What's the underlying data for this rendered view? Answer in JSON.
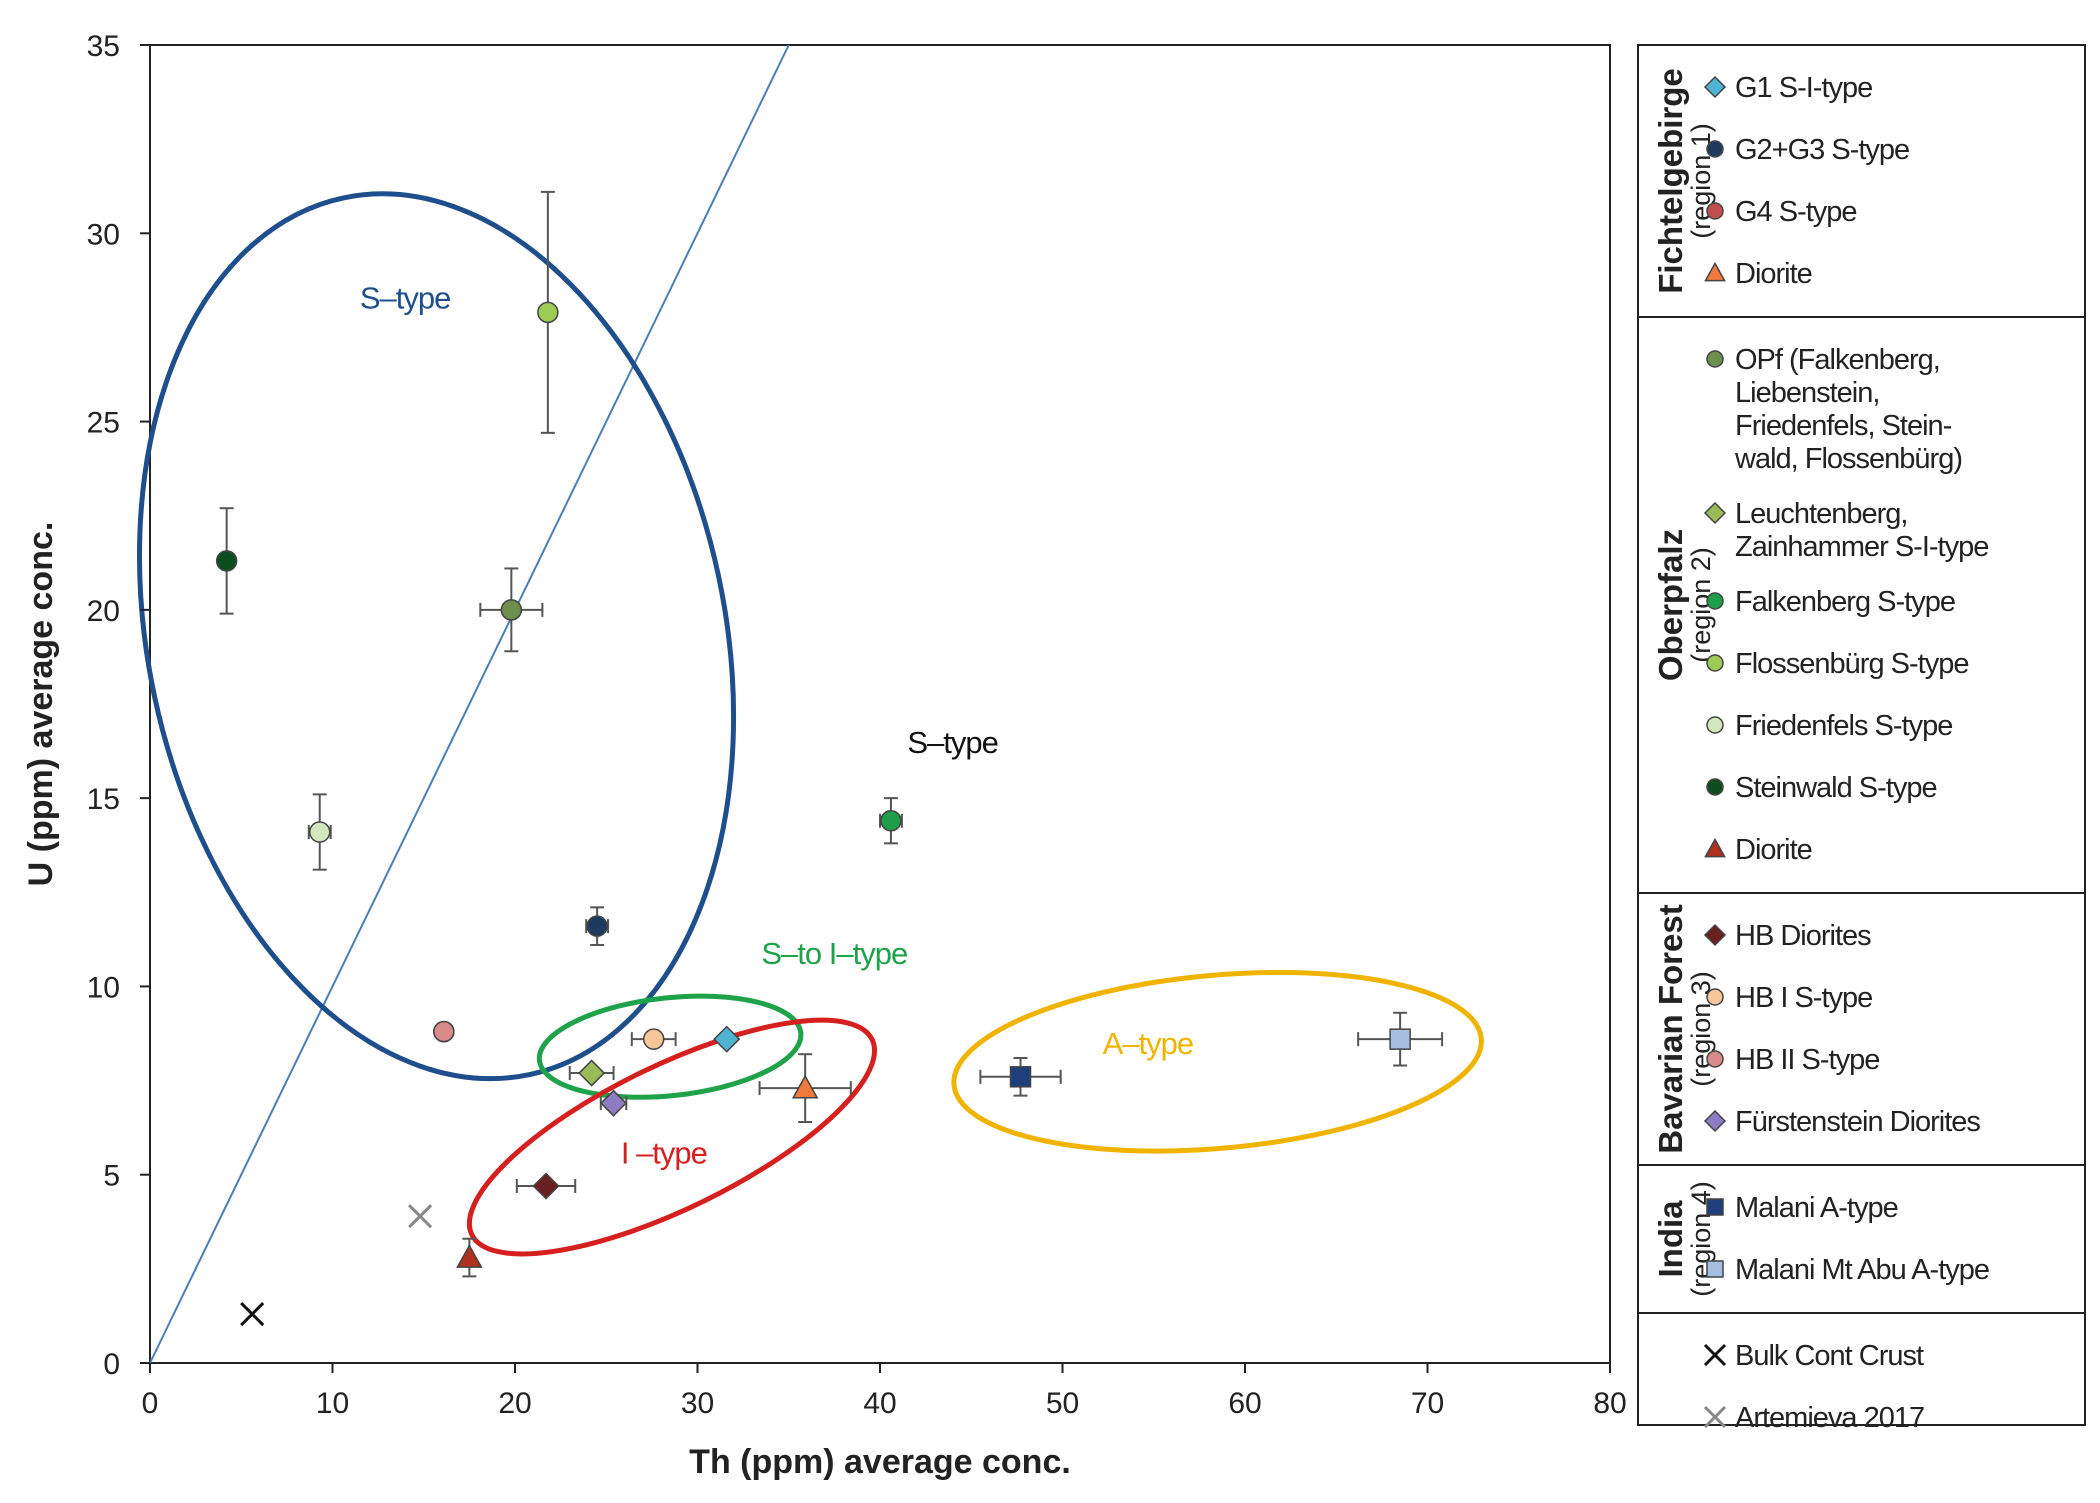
{
  "chart_data": {
    "type": "scatter",
    "xlabel": "Th (ppm) average conc.",
    "ylabel": "U (ppm) average conc.",
    "xlim": [
      0,
      80
    ],
    "ylim": [
      0,
      35
    ],
    "xticks": [
      0,
      10,
      20,
      30,
      40,
      50,
      60,
      70,
      80
    ],
    "yticks": [
      0,
      5,
      10,
      15,
      20,
      25,
      30,
      35
    ],
    "reference_line": {
      "x": [
        0,
        35
      ],
      "y": [
        0,
        35
      ],
      "color": "#4a7fb5"
    },
    "series": [
      {
        "name": "G1 S-I-type",
        "marker": "diamond",
        "color": "#4fb3d1",
        "points": [
          {
            "x": 31.6,
            "y": 8.6,
            "xerr": 0,
            "yerr": 0
          }
        ]
      },
      {
        "name": "G2+G3 S-type",
        "marker": "circle",
        "color": "#1f3a5f",
        "points": [
          {
            "x": 24.5,
            "y": 11.6,
            "xerr": 0.6,
            "yerr": 0.5
          }
        ]
      },
      {
        "name": "G4 S-type",
        "marker": "circle",
        "color": "#c0504d",
        "points": [
          {
            "x": 16.1,
            "y": 8.8,
            "xerr": 0,
            "yerr": 0
          }
        ]
      },
      {
        "name": "Diorite",
        "marker": "triangle",
        "color": "#f07a3a",
        "points": [
          {
            "x": 35.9,
            "y": 7.3,
            "xerr": 2.5,
            "yerr": 0.9
          }
        ]
      },
      {
        "name": "OPf (Falkenberg, Liebenstein, Friedenfels, Stein-wald, Flossenbürg)",
        "marker": "circle",
        "color": "#6f8f4f",
        "points": [
          {
            "x": 19.8,
            "y": 20.0,
            "xerr": 1.7,
            "yerr": 1.1
          }
        ]
      },
      {
        "name": "Leuchtenberg, Zainhammer S-I-type",
        "marker": "diamond",
        "color": "#9bbb59",
        "points": [
          {
            "x": 24.2,
            "y": 7.7,
            "xerr": 1.2,
            "yerr": 0
          }
        ]
      },
      {
        "name": "Falkenberg S-type",
        "marker": "circle",
        "color": "#1e9e4a",
        "points": [
          {
            "x": 40.6,
            "y": 14.4,
            "xerr": 0.6,
            "yerr": 0.6
          }
        ]
      },
      {
        "name": "Flossenbürg S-type",
        "marker": "circle",
        "color": "#9ccc55",
        "points": [
          {
            "x": 21.8,
            "y": 27.9,
            "xerr": 0,
            "yerr": 3.2
          }
        ]
      },
      {
        "name": "Friedenfels S-type",
        "marker": "circle",
        "color": "#d4e6bb",
        "points": [
          {
            "x": 9.3,
            "y": 14.1,
            "xerr": 0.6,
            "yerr": 1.0
          }
        ]
      },
      {
        "name": "Steinwald S-type",
        "marker": "circle",
        "color": "#0e4d1f",
        "points": [
          {
            "x": 4.2,
            "y": 21.3,
            "xerr": 0,
            "yerr": 1.4
          }
        ]
      },
      {
        "name": "Diorite",
        "marker": "triangle",
        "color": "#b03020",
        "points": [
          {
            "x": 17.5,
            "y": 2.8,
            "xerr": 0,
            "yerr": 0.5
          }
        ]
      },
      {
        "name": "HB Diorites",
        "marker": "diamond",
        "color": "#6b2020",
        "points": [
          {
            "x": 21.7,
            "y": 4.7,
            "xerr": 1.6,
            "yerr": 0
          }
        ]
      },
      {
        "name": "HB I S-type",
        "marker": "circle",
        "color": "#f7c79a",
        "points": [
          {
            "x": 27.6,
            "y": 8.6,
            "xerr": 1.2,
            "yerr": 0
          }
        ]
      },
      {
        "name": "HB II S-type",
        "marker": "circle",
        "color": "#d98b8b",
        "points": [
          {
            "x": 16.1,
            "y": 8.8,
            "xerr": 0,
            "yerr": 0
          }
        ]
      },
      {
        "name": "Fürstenstein Diorites",
        "marker": "diamond",
        "color": "#8e7cc3",
        "points": [
          {
            "x": 25.4,
            "y": 6.9,
            "xerr": 0.7,
            "yerr": 0
          }
        ]
      },
      {
        "name": "Malani A-type",
        "marker": "square",
        "color": "#1f3f7a",
        "points": [
          {
            "x": 47.7,
            "y": 7.6,
            "xerr": 2.2,
            "yerr": 0.5
          }
        ]
      },
      {
        "name": "Malani Mt Abu A-type",
        "marker": "square",
        "color": "#a6bfe0",
        "points": [
          {
            "x": 68.5,
            "y": 8.6,
            "xerr": 2.3,
            "yerr": 0.7
          }
        ]
      },
      {
        "name": "Bulk Cont Crust",
        "marker": "x",
        "color": "#111111",
        "points": [
          {
            "x": 5.6,
            "y": 1.3
          }
        ]
      },
      {
        "name": "Artemieva 2017",
        "marker": "x",
        "color": "#888888",
        "points": [
          {
            "x": 14.8,
            "y": 3.9
          }
        ]
      }
    ],
    "fields": [
      {
        "label": "S–type",
        "color": "#1f4e8c",
        "cx": 15.7,
        "cy": 19.3,
        "rx": 15.8,
        "ry": 11.9,
        "rotation": -12,
        "label_x": 11.5,
        "label_y": 28
      },
      {
        "label": "S–to I–type",
        "color": "#1fa34a",
        "cx": 28.5,
        "cy": 8.4,
        "rx": 7.2,
        "ry": 1.3,
        "rotation": -6,
        "label_x": 33.5,
        "label_y": 10.6
      },
      {
        "label": "I –type",
        "color": "#d62020",
        "cx": 28.6,
        "cy": 6.0,
        "rx": 12.2,
        "ry": 1.9,
        "rotation": -26,
        "label_x": 25.8,
        "label_y": 5.3
      },
      {
        "label": "A–type",
        "color": "#f0b400",
        "cx": 58.5,
        "cy": 8.0,
        "rx": 14.5,
        "ry": 2.3,
        "rotation": -5,
        "label_x": 52.2,
        "label_y": 8.2
      }
    ],
    "annotations": [
      {
        "text": "S–type",
        "x": 41.5,
        "y": 16.2,
        "color": "#111111"
      }
    ]
  },
  "legend": {
    "groups": [
      {
        "title": "Fichtelgebirge",
        "subtitle": "(region 1)",
        "items": [
          {
            "label_lines": [
              "G1 S-I-type"
            ],
            "series": 0
          },
          {
            "label_lines": [
              "G2+G3 S-type"
            ],
            "series": 1
          },
          {
            "label_lines": [
              "G4 S-type"
            ],
            "series": 2
          },
          {
            "label_lines": [
              "Diorite"
            ],
            "series": 3
          }
        ]
      },
      {
        "title": "Oberpfalz",
        "subtitle": "(region 2)",
        "items": [
          {
            "label_lines": [
              "OPf (Falkenberg,",
              "Liebenstein,",
              "Friedenfels, Stein-",
              "wald, Flossenbürg)"
            ],
            "series": 4
          },
          {
            "label_lines": [
              "Leuchtenberg,",
              "Zainhammer S-I-type"
            ],
            "series": 5
          },
          {
            "label_lines": [
              "Falkenberg S-type"
            ],
            "series": 6
          },
          {
            "label_lines": [
              "Flossenbürg S-type"
            ],
            "series": 7
          },
          {
            "label_lines": [
              "Friedenfels S-type"
            ],
            "series": 8
          },
          {
            "label_lines": [
              "Steinwald S-type"
            ],
            "series": 9
          },
          {
            "label_lines": [
              "Diorite"
            ],
            "series": 10
          }
        ]
      },
      {
        "title": "Bavarian Forest",
        "subtitle": "(region 3)",
        "items": [
          {
            "label_lines": [
              "HB Diorites"
            ],
            "series": 11
          },
          {
            "label_lines": [
              "HB I S-type"
            ],
            "series": 12
          },
          {
            "label_lines": [
              "HB II S-type"
            ],
            "series": 13
          },
          {
            "label_lines": [
              "Fürstenstein Diorites"
            ],
            "series": 14
          }
        ]
      },
      {
        "title": "India",
        "subtitle": "(region 4)",
        "items": [
          {
            "label_lines": [
              "Malani A-type"
            ],
            "series": 15
          },
          {
            "label_lines": [
              "Malani Mt Abu A-type"
            ],
            "series": 16
          }
        ]
      },
      {
        "title": "",
        "subtitle": "",
        "items": [
          {
            "label_lines": [
              "Bulk Cont Crust"
            ],
            "series": 17
          },
          {
            "label_lines": [
              "Artemieva 2017"
            ],
            "series": 18
          }
        ]
      }
    ]
  }
}
